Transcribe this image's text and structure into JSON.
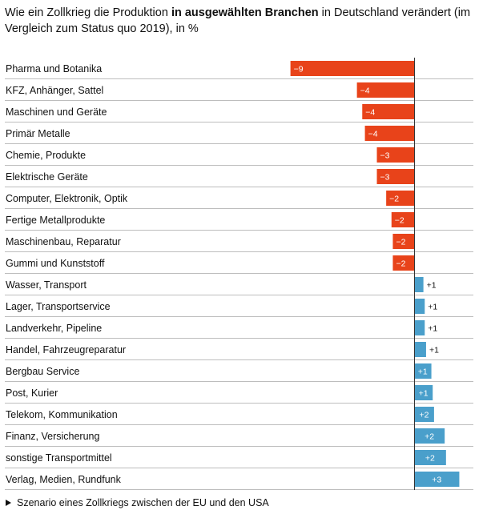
{
  "title": {
    "part1": "Wie ein Zollkrieg die Produktion ",
    "bold": "in ausgewählten Branchen",
    "part2": " in Deutschland verändert (im Vergleich zum Status quo 2019), in %"
  },
  "footnote": {
    "label": "Szenario eines Zollkriegs zwischen der EU und den USA"
  },
  "colors": {
    "negative": "#e8431a",
    "positive": "#4a9fcb",
    "rule": "#bdbdbd",
    "axis": "#333333"
  },
  "chart_data": {
    "type": "bar",
    "orientation": "horizontal",
    "categories": [
      "Pharma und Botanika",
      "KFZ, Anhänger, Sattel",
      "Maschinen und Geräte",
      "Primär Metalle",
      "Chemie, Produkte",
      "Elektrische Geräte",
      "Computer, Elektronik, Optik",
      "Fertige Metallprodukte",
      "Maschinenbau, Reparatur",
      "Gummi und Kunststoff",
      "Wasser, Transport",
      "Lager, Transportservice",
      "Landverkehr, Pipeline",
      "Handel, Fahrzeugreparatur",
      "Bergbau Service",
      "Post, Kurier",
      "Telekom, Kommunikation",
      "Finanz, Versicherung",
      "sonstige Transportmittel",
      "Verlag, Medien, Rundfunk"
    ],
    "values": [
      -9.3,
      -4.3,
      -3.9,
      -3.7,
      -2.8,
      -2.8,
      -2.1,
      -1.7,
      -1.6,
      -1.6,
      0.7,
      0.8,
      0.8,
      0.9,
      1.3,
      1.4,
      1.5,
      2.3,
      2.4,
      3.4
    ],
    "labels": [
      "−9",
      "−4",
      "−4",
      "−4",
      "−3",
      "−3",
      "−2",
      "−2",
      "−2",
      "−2",
      "+1",
      "+1",
      "+1",
      "+1",
      "+1",
      "+1",
      "+2",
      "+2",
      "+2",
      "+3"
    ],
    "xlim": [
      -9.3,
      4.2
    ],
    "unit": "%"
  }
}
